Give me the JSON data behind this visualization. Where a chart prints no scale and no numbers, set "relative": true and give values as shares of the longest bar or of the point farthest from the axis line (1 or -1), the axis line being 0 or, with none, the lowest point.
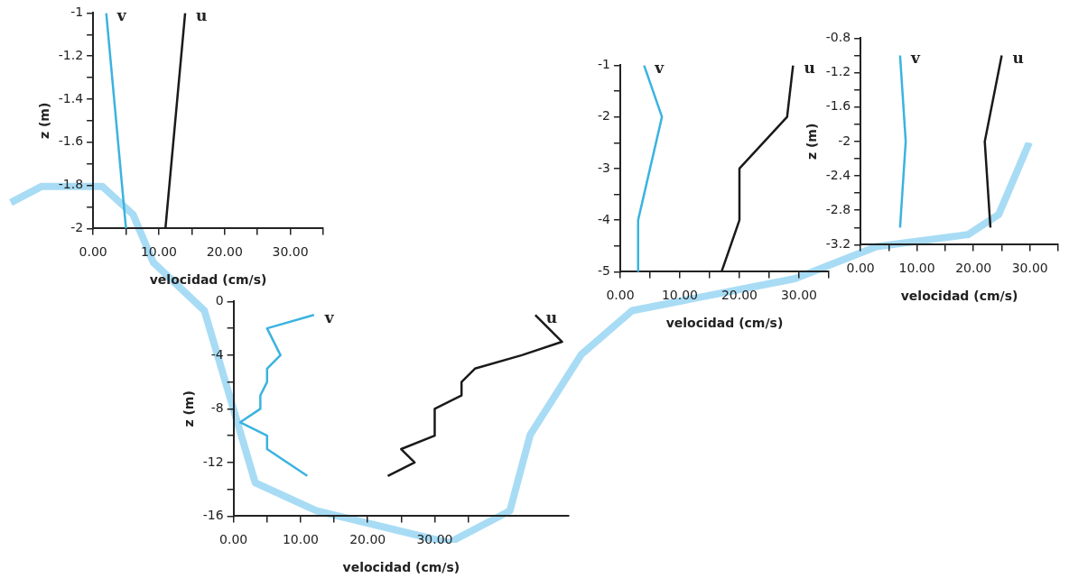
{
  "chart_data": [
    {
      "type": "line",
      "xlabel": "velocidad (cm/s)",
      "ylabel": "z (m)",
      "line_style": "solid",
      "marker": "none",
      "xlim": [
        0,
        35
      ],
      "ylim": [
        -2,
        -1
      ],
      "xticks": [
        {
          "value": 0,
          "label": "0.00"
        },
        {
          "value": 5,
          "label": null
        },
        {
          "value": 10,
          "label": "10.00"
        },
        {
          "value": 15,
          "label": null
        },
        {
          "value": 20,
          "label": "20.00"
        },
        {
          "value": 25,
          "label": null
        },
        {
          "value": 30,
          "label": "30.00"
        },
        {
          "value": 35,
          "label": null
        }
      ],
      "yticks": [
        -2,
        {
          "value": -1.9,
          "label": null
        },
        -1.8,
        {
          "value": -1.7,
          "label": null
        },
        -1.6,
        {
          "value": -1.5,
          "label": null
        },
        -1.4,
        {
          "value": -1.3,
          "label": null
        },
        -1.2,
        {
          "value": -1.1,
          "label": null
        },
        -1
      ],
      "series": [
        {
          "name": "v",
          "color": "#3bb3e0",
          "x": [
            2,
            5
          ],
          "values": [
            -1,
            -2
          ]
        },
        {
          "name": "u",
          "color": "#1a1a1a",
          "x": [
            14,
            11
          ],
          "values": [
            -1,
            -2
          ]
        }
      ]
    },
    {
      "type": "line",
      "xlabel": "velocidad (cm/s)",
      "ylabel": "z (m)",
      "line_style": "solid",
      "marker": "none",
      "xlim": [
        0,
        50
      ],
      "ylim": [
        -16,
        0
      ],
      "xticks": [
        {
          "value": 0,
          "label": "0.00"
        },
        {
          "value": 5,
          "label": null
        },
        {
          "value": 10,
          "label": "10.00"
        },
        {
          "value": 15,
          "label": null
        },
        {
          "value": 20,
          "label": "20.00"
        },
        {
          "value": 25,
          "label": null
        },
        {
          "value": 30,
          "label": "30.00"
        },
        {
          "value": 35,
          "label": null
        }
      ],
      "yticks": [
        -16,
        {
          "value": -14,
          "label": null
        },
        -12,
        {
          "value": -10,
          "label": null
        },
        -8,
        {
          "value": -6,
          "label": null
        },
        -4,
        {
          "value": -2,
          "label": null
        },
        0
      ],
      "series": [
        {
          "name": "v",
          "color": "#3bb3e0",
          "x": [
            12,
            5,
            7,
            5,
            5,
            4,
            4,
            1,
            5,
            5,
            11
          ],
          "values": [
            -1,
            -2,
            -4,
            -5,
            -6,
            -7,
            -8,
            -9,
            -10,
            -11,
            -13
          ]
        },
        {
          "name": "u",
          "color": "#1a1a1a",
          "x": [
            45,
            49,
            43,
            36,
            34,
            34,
            30,
            30,
            25,
            27,
            23
          ],
          "values": [
            -1,
            -3,
            -4,
            -5,
            -6,
            -7,
            -8,
            -10,
            -11,
            -12,
            -13
          ]
        }
      ]
    },
    {
      "type": "line",
      "xlabel": "velocidad (cm/s)",
      "line_style": "solid",
      "marker": "none",
      "xlim": [
        0,
        35
      ],
      "ylim": [
        -5,
        -1
      ],
      "xticks": [
        {
          "value": 0,
          "label": "0.00"
        },
        {
          "value": 5,
          "label": null
        },
        {
          "value": 10,
          "label": "10.00"
        },
        {
          "value": 15,
          "label": null
        },
        {
          "value": 20,
          "label": "20.00"
        },
        {
          "value": 25,
          "label": null
        },
        {
          "value": 30,
          "label": "30.00"
        },
        {
          "value": 35,
          "label": null
        }
      ],
      "yticks": [
        -5,
        {
          "value": -4.5,
          "label": null
        },
        -4,
        {
          "value": -3.5,
          "label": null
        },
        -3,
        {
          "value": -2.5,
          "label": null
        },
        -2,
        {
          "value": -1.5,
          "label": null
        },
        -1
      ],
      "series": [
        {
          "name": "v",
          "color": "#3bb3e0",
          "x": [
            4,
            7,
            3,
            3
          ],
          "values": [
            -1,
            -2,
            -4,
            -5
          ]
        },
        {
          "name": "u",
          "color": "#1a1a1a",
          "x": [
            29,
            28,
            20,
            20,
            17
          ],
          "values": [
            -1,
            -2,
            -3,
            -4,
            -5
          ]
        }
      ]
    },
    {
      "type": "line",
      "xlabel": "velocidad (cm/s)",
      "ylabel": "z (m)",
      "line_style": "solid",
      "marker": "none",
      "xlim": [
        0,
        35
      ],
      "ylim": [
        -3.2,
        -0.8
      ],
      "xticks": [
        {
          "value": 0,
          "label": "0.00"
        },
        {
          "value": 5,
          "label": null
        },
        {
          "value": 10,
          "label": "10.00"
        },
        {
          "value": 15,
          "label": null
        },
        {
          "value": 20,
          "label": "20.00"
        },
        {
          "value": 25,
          "label": null
        },
        {
          "value": 30,
          "label": "30.00"
        },
        {
          "value": 35,
          "label": null
        }
      ],
      "yticks": [
        -3.2,
        {
          "value": -3,
          "label": null
        },
        -2.8,
        {
          "value": -2.6,
          "label": null
        },
        -2.4,
        {
          "value": -2.2,
          "label": null
        },
        -2,
        {
          "value": -1.8,
          "label": null
        },
        -1.6,
        {
          "value": -1.4,
          "label": null
        },
        -1.2,
        {
          "value": -1,
          "label": null
        },
        -0.8
      ],
      "series": [
        {
          "name": "v",
          "color": "#3bb3e0",
          "x": [
            7,
            8,
            7
          ],
          "values": [
            -1,
            -2,
            -3
          ]
        },
        {
          "name": "u",
          "color": "#1a1a1a",
          "x": [
            25,
            22,
            23
          ],
          "values": [
            -1,
            -2,
            -3
          ]
        }
      ]
    },
    {
      "type": "line",
      "relative": true,
      "line_style": "solid",
      "marker": "none",
      "series": [
        {
          "color": "#a8dcf5",
          "values": [
            0.85,
            null,
            null,
            0.89,
            null,
            null,
            null,
            null,
            null,
            0.89,
            null,
            null,
            0.82,
            null,
            0.7,
            null,
            null,
            null,
            null,
            0.58,
            null,
            null,
            null,
            null,
            0.15,
            null,
            null,
            null,
            null,
            null,
            0.08,
            null,
            null,
            null,
            null,
            null,
            null,
            null,
            null,
            null,
            null,
            null,
            null,
            0,
            null,
            null,
            null,
            null,
            null,
            0.08,
            null,
            0.27,
            null,
            0.35,
            null,
            null,
            0.47,
            null,
            null,
            null,
            null,
            0.58,
            null,
            null,
            null,
            null,
            null,
            null,
            null,
            null,
            null,
            null,
            null,
            null,
            null,
            null,
            null,
            0.66,
            null,
            null,
            null,
            null,
            null,
            null,
            null,
            0.74,
            null,
            null,
            null,
            null,
            null,
            null,
            null,
            null,
            0.77,
            null,
            null,
            0.82,
            null,
            null,
            1
          ]
        }
      ],
      "categories": [
        null,
        null,
        null,
        null,
        null,
        null,
        null,
        null,
        null,
        null,
        null,
        null,
        null,
        null,
        null,
        null,
        null,
        null,
        null,
        null,
        null,
        null,
        null,
        null,
        null,
        null,
        null,
        null,
        null,
        null,
        null,
        null,
        null,
        null,
        null,
        null,
        null,
        null,
        null,
        null,
        null,
        null,
        null,
        null,
        null,
        null,
        null,
        null,
        null,
        null,
        null,
        null,
        null,
        null,
        null,
        null,
        null,
        null,
        null,
        null,
        null,
        null,
        null,
        null,
        null,
        null,
        null,
        null,
        null,
        null,
        null,
        null,
        null,
        null,
        null,
        null,
        null,
        null,
        null,
        null,
        null,
        null,
        null,
        null,
        null,
        null,
        null,
        null,
        null,
        null,
        null,
        null,
        null,
        null,
        null,
        null,
        null,
        null,
        null,
        null,
        null
      ]
    }
  ]
}
